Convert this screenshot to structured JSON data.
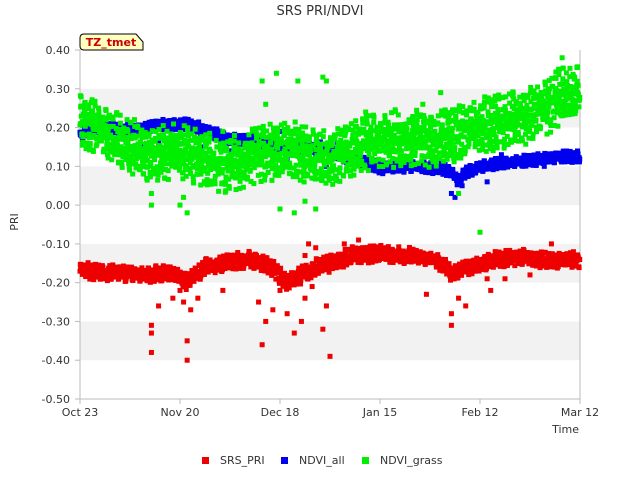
{
  "chart_data": {
    "type": "scatter",
    "title": "SRS PRI/NDVI",
    "xlabel": "Time",
    "ylabel": "PRI",
    "xlim": [
      0,
      140
    ],
    "ylim": [
      -0.5,
      0.4
    ],
    "x_ticks": [
      {
        "day": 0,
        "label": "Oct 23"
      },
      {
        "day": 28,
        "label": "Nov 20"
      },
      {
        "day": 56,
        "label": "Dec 18"
      },
      {
        "day": 84,
        "label": "Jan 15"
      },
      {
        "day": 112,
        "label": "Feb 12"
      },
      {
        "day": 140,
        "label": "Mar 12"
      }
    ],
    "y_ticks": [
      {
        "value": 0.4,
        "label": "0.40"
      },
      {
        "value": 0.3,
        "label": "0.30"
      },
      {
        "value": 0.2,
        "label": "0.20"
      },
      {
        "value": 0.1,
        "label": "0.10"
      },
      {
        "value": 0.0,
        "label": "0.00"
      },
      {
        "value": -0.1,
        "label": "-0.10"
      },
      {
        "value": -0.2,
        "label": "-0.20"
      },
      {
        "value": -0.3,
        "label": "-0.30"
      },
      {
        "value": -0.4,
        "label": "-0.40"
      },
      {
        "value": -0.5,
        "label": "-0.50"
      }
    ],
    "legend_position": "bottom-center",
    "site_label": "TZ_tmet",
    "colors": {
      "band": "#f2f2f2",
      "axis": "#bbbbbb",
      "badge_fill": "#ffffc0",
      "badge_text": "#cc0000"
    },
    "series": [
      {
        "name": "SRS_PRI",
        "color": "#ee0000",
        "anchors": [
          [
            0,
            -0.17
          ],
          [
            10,
            -0.175
          ],
          [
            20,
            -0.18
          ],
          [
            26,
            -0.175
          ],
          [
            30,
            -0.2
          ],
          [
            35,
            -0.16
          ],
          [
            42,
            -0.145
          ],
          [
            48,
            -0.14
          ],
          [
            53,
            -0.155
          ],
          [
            58,
            -0.2
          ],
          [
            62,
            -0.18
          ],
          [
            66,
            -0.16
          ],
          [
            70,
            -0.15
          ],
          [
            76,
            -0.13
          ],
          [
            84,
            -0.125
          ],
          [
            92,
            -0.13
          ],
          [
            100,
            -0.14
          ],
          [
            104,
            -0.175
          ],
          [
            110,
            -0.155
          ],
          [
            116,
            -0.14
          ],
          [
            124,
            -0.135
          ],
          [
            132,
            -0.145
          ],
          [
            140,
            -0.14
          ]
        ],
        "noise": 0.012,
        "density": 12,
        "outliers": [
          [
            20,
            -0.38
          ],
          [
            20,
            -0.33
          ],
          [
            20,
            -0.31
          ],
          [
            22,
            -0.26
          ],
          [
            26,
            -0.24
          ],
          [
            28,
            -0.22
          ],
          [
            29,
            -0.25
          ],
          [
            30,
            -0.4
          ],
          [
            30,
            -0.35
          ],
          [
            31,
            -0.27
          ],
          [
            33,
            -0.24
          ],
          [
            40,
            -0.22
          ],
          [
            50,
            -0.25
          ],
          [
            51,
            -0.36
          ],
          [
            52,
            -0.3
          ],
          [
            54,
            -0.27
          ],
          [
            56,
            -0.22
          ],
          [
            58,
            -0.28
          ],
          [
            60,
            -0.33
          ],
          [
            62,
            -0.3
          ],
          [
            63,
            -0.24
          ],
          [
            63,
            -0.13
          ],
          [
            64,
            -0.1
          ],
          [
            65,
            -0.21
          ],
          [
            66,
            -0.11
          ],
          [
            68,
            -0.32
          ],
          [
            69,
            -0.26
          ],
          [
            70,
            -0.39
          ],
          [
            71,
            -0.14
          ],
          [
            74,
            -0.1
          ],
          [
            76,
            -0.13
          ],
          [
            78,
            -0.09
          ],
          [
            79,
            -0.11
          ],
          [
            82,
            -0.12
          ],
          [
            85,
            -0.12
          ],
          [
            88,
            -0.13
          ],
          [
            97,
            -0.23
          ],
          [
            104,
            -0.28
          ],
          [
            104,
            -0.31
          ],
          [
            106,
            -0.24
          ],
          [
            108,
            -0.26
          ],
          [
            110,
            -0.15
          ],
          [
            114,
            -0.19
          ],
          [
            115,
            -0.22
          ],
          [
            119,
            -0.19
          ],
          [
            126,
            -0.18
          ],
          [
            132,
            -0.1
          ]
        ]
      },
      {
        "name": "NDVI_all",
        "color": "#0000ee",
        "anchors": [
          [
            0,
            0.18
          ],
          [
            8,
            0.2
          ],
          [
            15,
            0.195
          ],
          [
            22,
            0.205
          ],
          [
            30,
            0.21
          ],
          [
            36,
            0.19
          ],
          [
            42,
            0.17
          ],
          [
            50,
            0.165
          ],
          [
            56,
            0.15
          ],
          [
            62,
            0.145
          ],
          [
            68,
            0.15
          ],
          [
            74,
            0.125
          ],
          [
            80,
            0.11
          ],
          [
            84,
            0.095
          ],
          [
            92,
            0.1
          ],
          [
            100,
            0.095
          ],
          [
            104,
            0.085
          ],
          [
            106,
            0.06
          ],
          [
            108,
            0.085
          ],
          [
            112,
            0.1
          ],
          [
            118,
            0.11
          ],
          [
            126,
            0.115
          ],
          [
            134,
            0.125
          ],
          [
            140,
            0.125
          ]
        ],
        "noise": 0.008,
        "density": 13,
        "outliers": [
          [
            18,
            0.15
          ],
          [
            22,
            0.16
          ],
          [
            34,
            0.15
          ],
          [
            42,
            0.14
          ],
          [
            56,
            0.19
          ],
          [
            58,
            0.12
          ],
          [
            60,
            0.14
          ],
          [
            64,
            0.11
          ],
          [
            66,
            0.13
          ],
          [
            69,
            0.1
          ],
          [
            72,
            0.16
          ],
          [
            75,
            0.11
          ],
          [
            104,
            0.03
          ],
          [
            105,
            0.02
          ],
          [
            107,
            0.05
          ],
          [
            114,
            0.06
          ],
          [
            118,
            0.13
          ],
          [
            124,
            0.1
          ],
          [
            130,
            0.1
          ]
        ]
      },
      {
        "name": "NDVI_grass",
        "color": "#00ee00",
        "anchors": [
          [
            0,
            0.22
          ],
          [
            5,
            0.2
          ],
          [
            10,
            0.17
          ],
          [
            15,
            0.15
          ],
          [
            20,
            0.13
          ],
          [
            25,
            0.14
          ],
          [
            30,
            0.13
          ],
          [
            35,
            0.12
          ],
          [
            40,
            0.1
          ],
          [
            45,
            0.11
          ],
          [
            50,
            0.13
          ],
          [
            55,
            0.14
          ],
          [
            60,
            0.145
          ],
          [
            65,
            0.12
          ],
          [
            70,
            0.12
          ],
          [
            75,
            0.14
          ],
          [
            80,
            0.16
          ],
          [
            85,
            0.17
          ],
          [
            90,
            0.17
          ],
          [
            95,
            0.175
          ],
          [
            100,
            0.17
          ],
          [
            105,
            0.18
          ],
          [
            110,
            0.2
          ],
          [
            115,
            0.21
          ],
          [
            120,
            0.22
          ],
          [
            125,
            0.23
          ],
          [
            130,
            0.25
          ],
          [
            135,
            0.28
          ],
          [
            140,
            0.3
          ]
        ],
        "noise": 0.04,
        "density": 16,
        "outliers": [
          [
            20,
            0.0
          ],
          [
            20,
            0.03
          ],
          [
            28,
            0.0
          ],
          [
            30,
            -0.02
          ],
          [
            29,
            0.02
          ],
          [
            40,
            0.19
          ],
          [
            46,
            0.07
          ],
          [
            51,
            0.32
          ],
          [
            52,
            0.26
          ],
          [
            55,
            0.34
          ],
          [
            56,
            -0.01
          ],
          [
            60,
            -0.02
          ],
          [
            61,
            0.32
          ],
          [
            63,
            0.01
          ],
          [
            66,
            -0.01
          ],
          [
            68,
            0.12
          ],
          [
            68,
            0.33
          ],
          [
            69,
            0.32
          ],
          [
            76,
            0.21
          ],
          [
            80,
            0.24
          ],
          [
            88,
            0.18
          ],
          [
            96,
            0.26
          ],
          [
            101,
            0.29
          ],
          [
            106,
            0.03
          ],
          [
            112,
            -0.07
          ],
          [
            115,
            0.21
          ],
          [
            131,
            0.28
          ],
          [
            134,
            0.35
          ],
          [
            135,
            0.38
          ]
        ]
      }
    ]
  }
}
